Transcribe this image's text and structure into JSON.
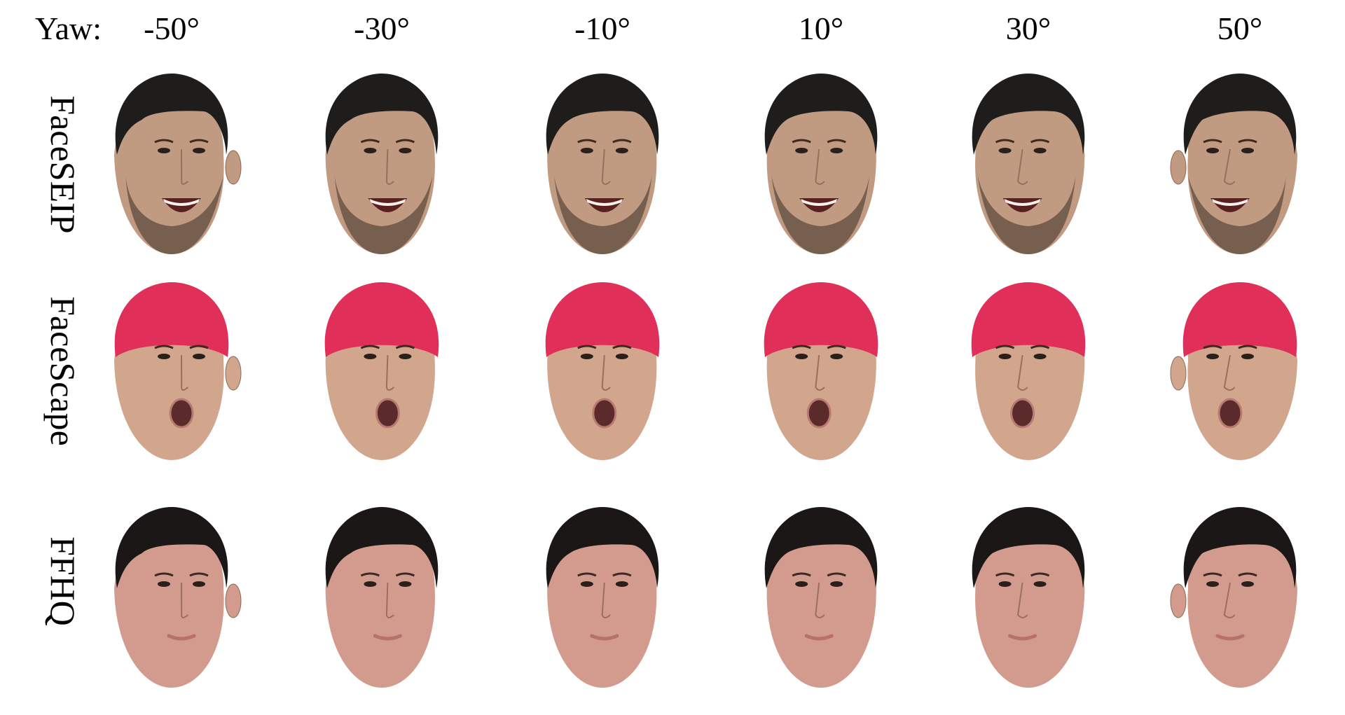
{
  "header": {
    "yaw_label": "Yaw:",
    "angles": [
      "-50°",
      "-30°",
      "-10°",
      "10°",
      "30°",
      "50°"
    ]
  },
  "rows": [
    {
      "label": "FaceSEIP",
      "subject": "smiling bearded man",
      "hair_color": "#1f1d1b",
      "skin_color": "#c19a82",
      "expression": "big-smile"
    },
    {
      "label": "FaceScape",
      "subject": "man with red cap, mouth open",
      "hair_color": "#e0305a",
      "skin_color": "#d2a68d",
      "expression": "open-mouth"
    },
    {
      "label": "FFHQ",
      "subject": "young man, neutral expression",
      "hair_color": "#1a1716",
      "skin_color": "#d39b8e",
      "expression": "neutral"
    }
  ]
}
